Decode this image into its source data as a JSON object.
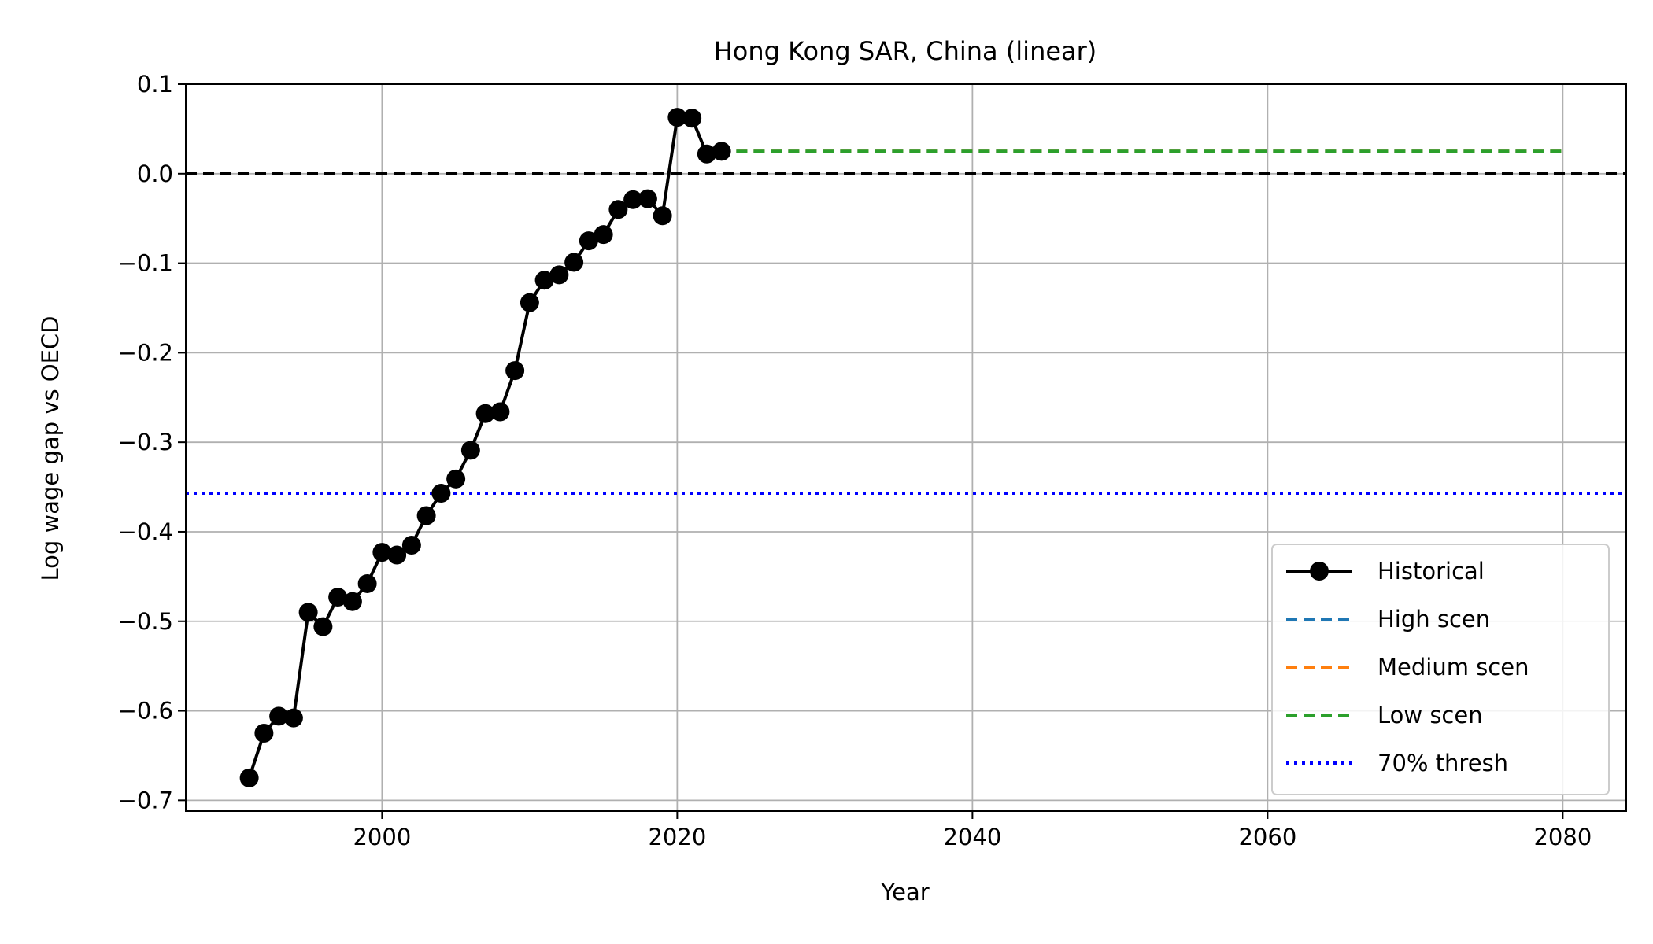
{
  "chart_data": {
    "type": "line",
    "title": "Hong Kong SAR, China (linear)",
    "xlabel": "Year",
    "ylabel": "Log wage gap vs OECD",
    "xlim": [
      1986.7,
      2084.3
    ],
    "ylim": [
      -0.712,
      0.1
    ],
    "xticks": [
      2000,
      2020,
      2040,
      2060,
      2080
    ],
    "yticks": [
      0.1,
      0.0,
      -0.1,
      -0.2,
      -0.3,
      -0.4,
      -0.5,
      -0.6,
      -0.7
    ],
    "ytick_labels": [
      "0.1",
      "0.0",
      "−0.1",
      "−0.2",
      "−0.3",
      "−0.4",
      "−0.5",
      "−0.6",
      "−0.7"
    ],
    "grid": true,
    "legend_position": "lower-right",
    "series": [
      {
        "name": "Historical",
        "style": "solid-markers",
        "color": "#000000",
        "x": [
          1991,
          1992,
          1993,
          1994,
          1995,
          1996,
          1997,
          1998,
          1999,
          2000,
          2001,
          2002,
          2003,
          2004,
          2005,
          2006,
          2007,
          2008,
          2009,
          2010,
          2011,
          2012,
          2013,
          2014,
          2015,
          2016,
          2017,
          2018,
          2019,
          2020,
          2021,
          2022,
          2023
        ],
        "y": [
          -0.675,
          -0.625,
          -0.606,
          -0.608,
          -0.49,
          -0.506,
          -0.473,
          -0.478,
          -0.458,
          -0.423,
          -0.426,
          -0.415,
          -0.382,
          -0.357,
          -0.341,
          -0.309,
          -0.268,
          -0.266,
          -0.22,
          -0.144,
          -0.119,
          -0.113,
          -0.099,
          -0.075,
          -0.068,
          -0.04,
          -0.029,
          -0.028,
          -0.047,
          0.063,
          0.062,
          0.022,
          0.025
        ]
      },
      {
        "name": "High scen",
        "style": "dashed",
        "color": "#1f77b4",
        "x": [
          2024,
          2080
        ],
        "y": [
          0.025,
          0.025
        ]
      },
      {
        "name": "Medium scen",
        "style": "dashed",
        "color": "#ff7f0e",
        "x": [
          2024,
          2080
        ],
        "y": [
          0.025,
          0.025
        ]
      },
      {
        "name": "Low scen",
        "style": "dashed",
        "color": "#2ca02c",
        "x": [
          2024,
          2080
        ],
        "y": [
          0.025,
          0.025
        ]
      }
    ],
    "reference_lines": [
      {
        "name": "",
        "style": "dashed",
        "color": "#000000",
        "y": 0.0
      },
      {
        "name": "70% thresh",
        "style": "dotted",
        "color": "#0000ff",
        "y": -0.357
      }
    ]
  }
}
